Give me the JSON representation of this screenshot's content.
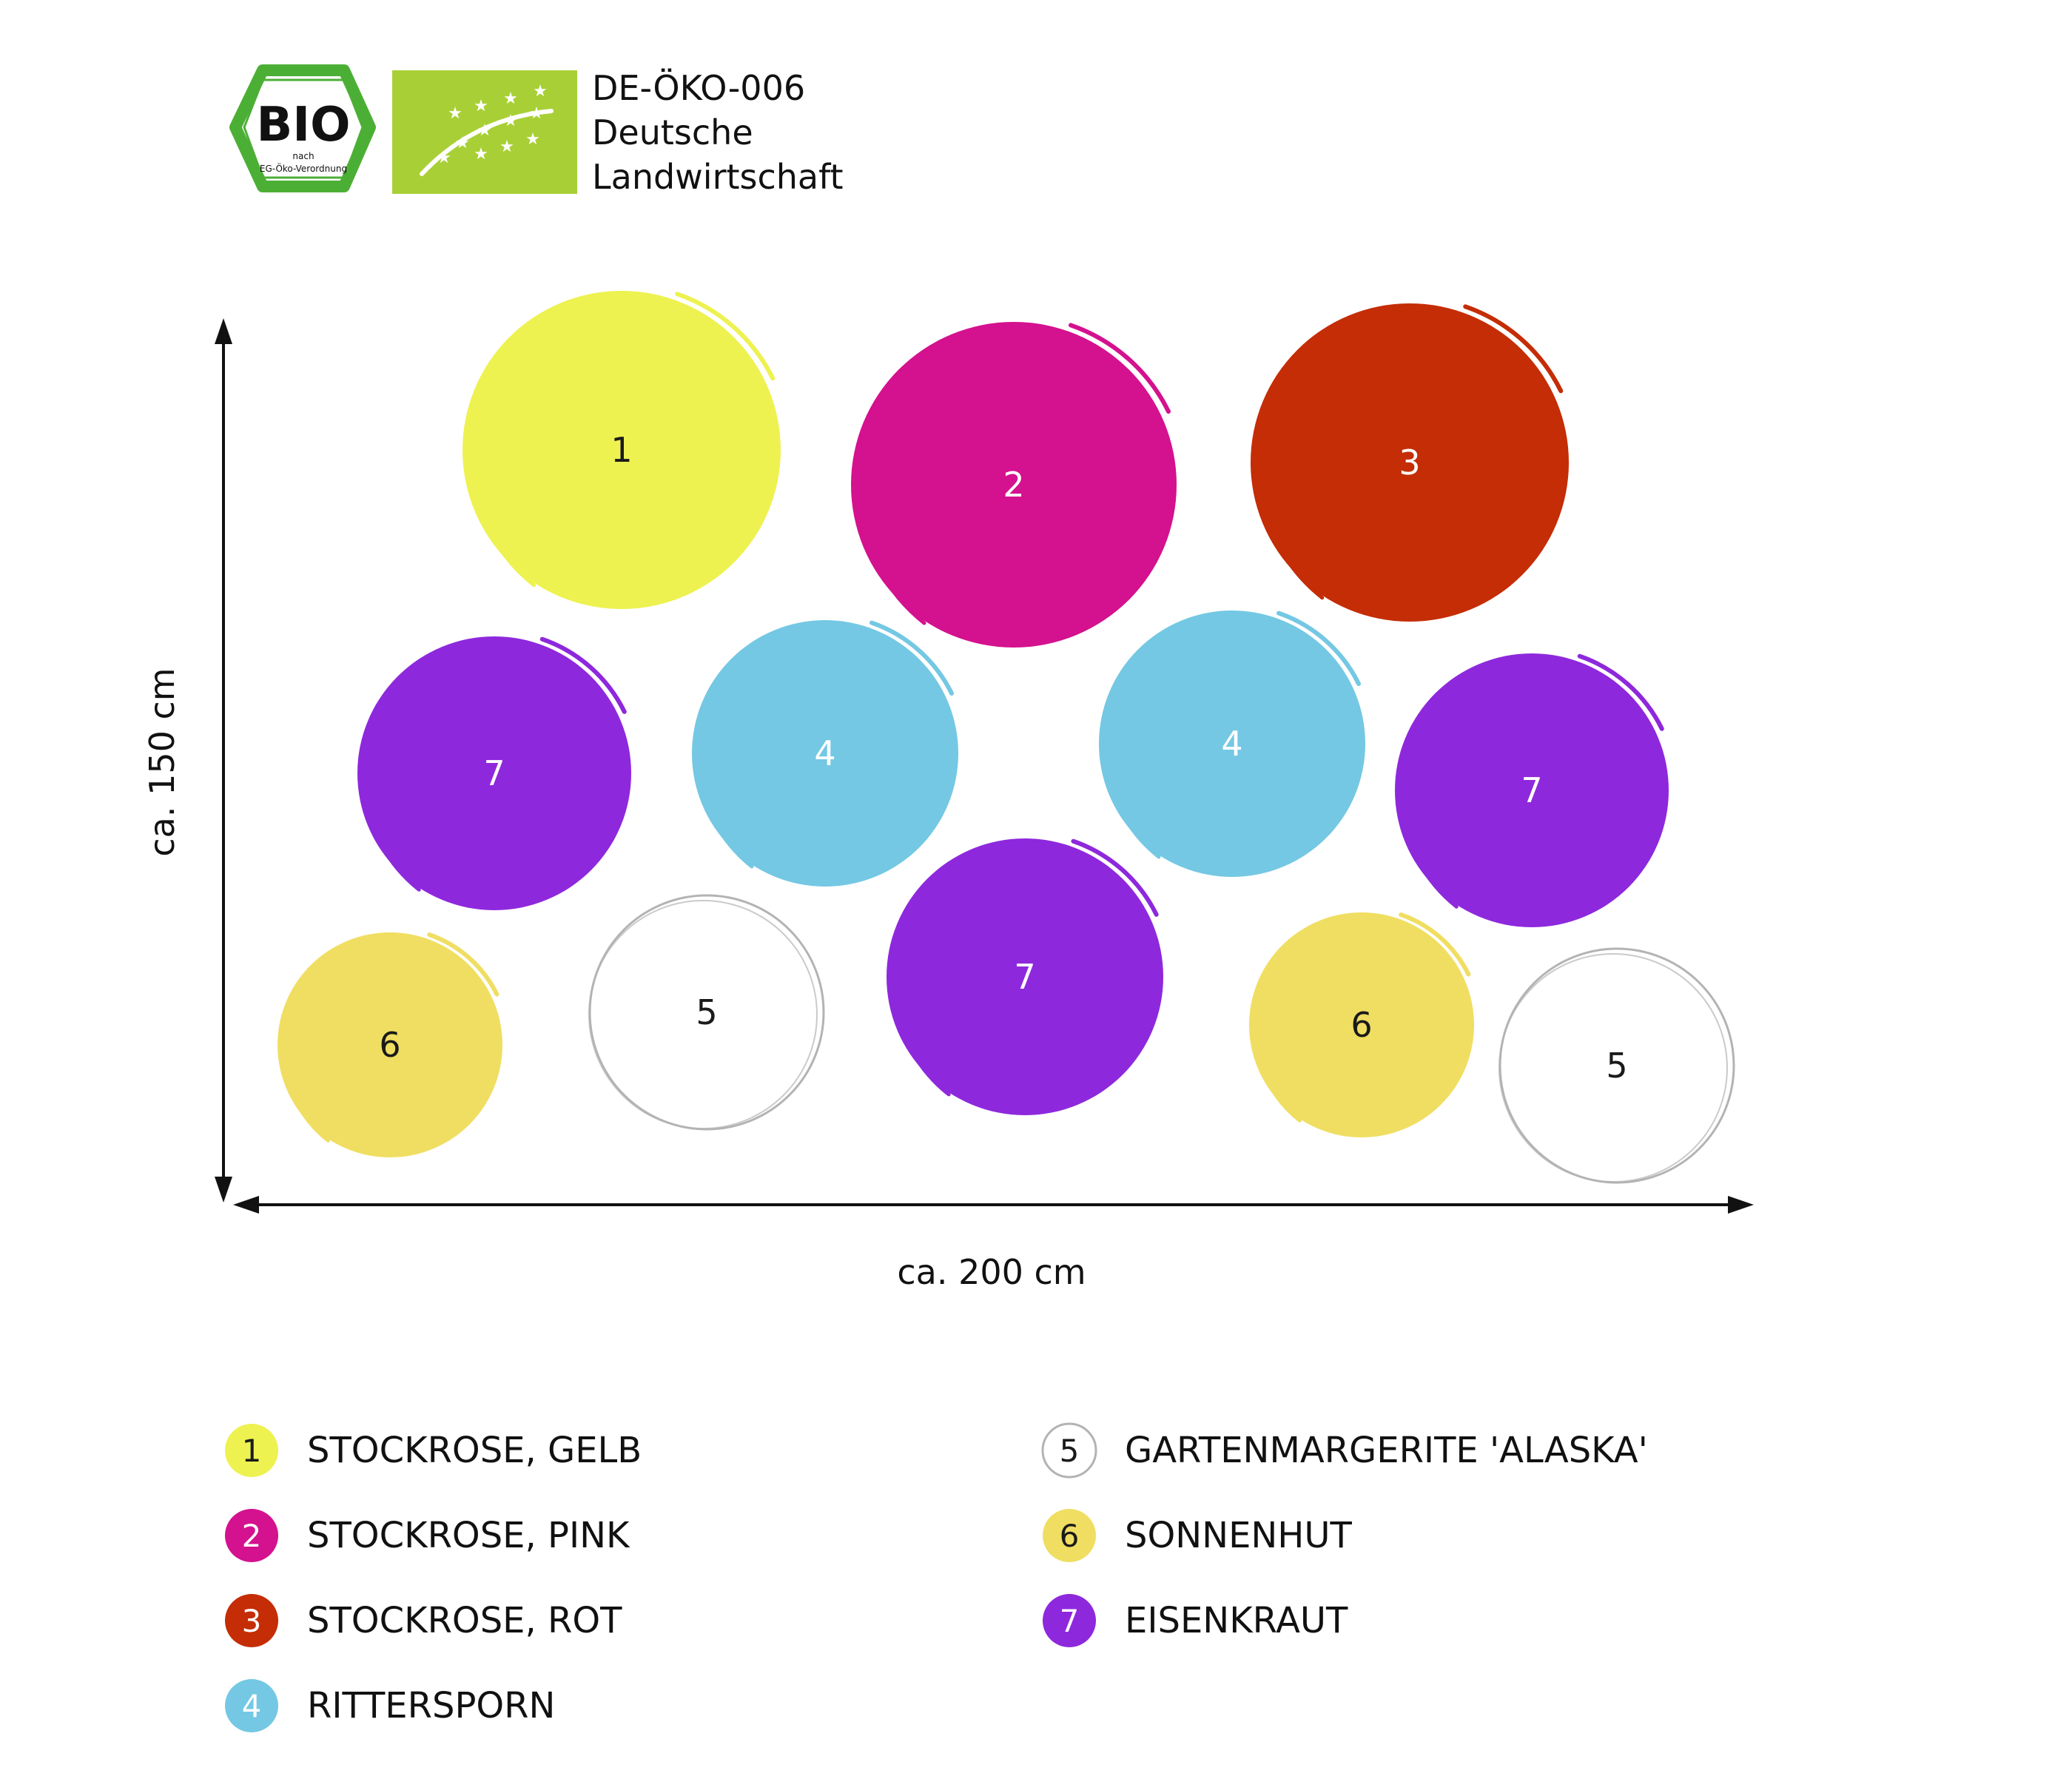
{
  "logos": {
    "bio_seal": {
      "main": "BIO",
      "sub1": "nach",
      "sub2": "EG-Öko-Verordnung",
      "color": "#4caf35"
    },
    "eu_leaf": {
      "color": "#a8d036",
      "star_color": "#ffffff"
    },
    "certification": {
      "line1": "DE-ÖKO-006",
      "line2": "Deutsche",
      "line3": "Landwirtschaft"
    }
  },
  "dimensions": {
    "height_label": "ca. 150 cm",
    "width_label": "ca. 200 cm"
  },
  "plants": [
    {
      "num": "1",
      "name": "STOCKROSE, GELB",
      "color": "#edf250",
      "text_color": "#1a1a1a"
    },
    {
      "num": "2",
      "name": "STOCKROSE, PINK",
      "color": "#d4118e",
      "text_color": "#ffffff"
    },
    {
      "num": "3",
      "name": "STOCKROSE, ROT",
      "color": "#c42d06",
      "text_color": "#ffffff"
    },
    {
      "num": "4",
      "name": "RITTERSPORN",
      "color": "#74c8e3",
      "text_color": "#ffffff"
    },
    {
      "num": "5",
      "name": "GARTENMARGERITE 'ALASKA'",
      "color": "#ffffff",
      "text_color": "#1a1a1a"
    },
    {
      "num": "6",
      "name": "SONNENHUT",
      "color": "#f0de62",
      "text_color": "#1a1a1a"
    },
    {
      "num": "7",
      "name": "EISENKRAUT",
      "color": "#8e28dc",
      "text_color": "#ffffff"
    }
  ],
  "outline_color": "#b3b3b3",
  "axis_color": "#111111",
  "positions": [
    {
      "label": "1"
    },
    {
      "label": "2"
    },
    {
      "label": "3"
    },
    {
      "label": "7"
    },
    {
      "label": "4"
    },
    {
      "label": "4"
    },
    {
      "label": "7"
    },
    {
      "label": "6"
    },
    {
      "label": "5"
    },
    {
      "label": "7"
    },
    {
      "label": "6"
    },
    {
      "label": "5"
    }
  ]
}
